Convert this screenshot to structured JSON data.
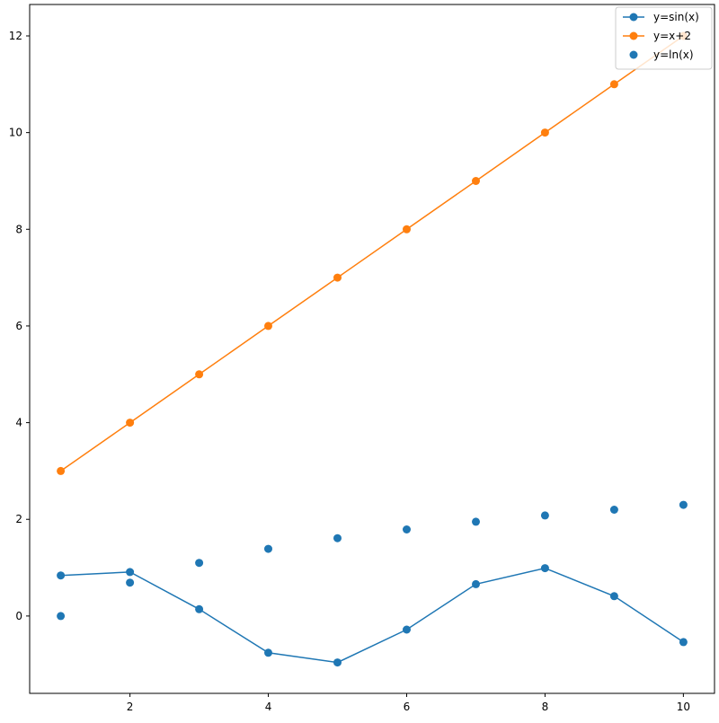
{
  "chart_data": {
    "type": "line",
    "title": "",
    "xlabel": "",
    "ylabel": "",
    "xlim": [
      0.55,
      10.45
    ],
    "ylim": [
      -1.6,
      12.65
    ],
    "x_ticks": [
      2,
      4,
      6,
      8,
      10
    ],
    "y_ticks": [
      0,
      2,
      4,
      6,
      8,
      10,
      12
    ],
    "grid": false,
    "legend_position": "top-right",
    "x": [
      1,
      2,
      3,
      4,
      5,
      6,
      7,
      8,
      9,
      10
    ],
    "series": [
      {
        "name": "y=sin(x)",
        "style": "line-marker",
        "color": "#1f77b4",
        "values": [
          0.84,
          0.91,
          0.14,
          -0.76,
          -0.96,
          -0.28,
          0.66,
          0.99,
          0.41,
          -0.54
        ]
      },
      {
        "name": "y=x+2",
        "style": "line-marker",
        "color": "#ff7f0e",
        "values": [
          3,
          4,
          5,
          6,
          7,
          8,
          9,
          10,
          11,
          12
        ]
      },
      {
        "name": "y=ln(x)",
        "style": "scatter",
        "color": "#1f77b4",
        "values": [
          0.0,
          0.69,
          1.1,
          1.39,
          1.61,
          1.79,
          1.95,
          2.08,
          2.2,
          2.3
        ]
      }
    ]
  }
}
